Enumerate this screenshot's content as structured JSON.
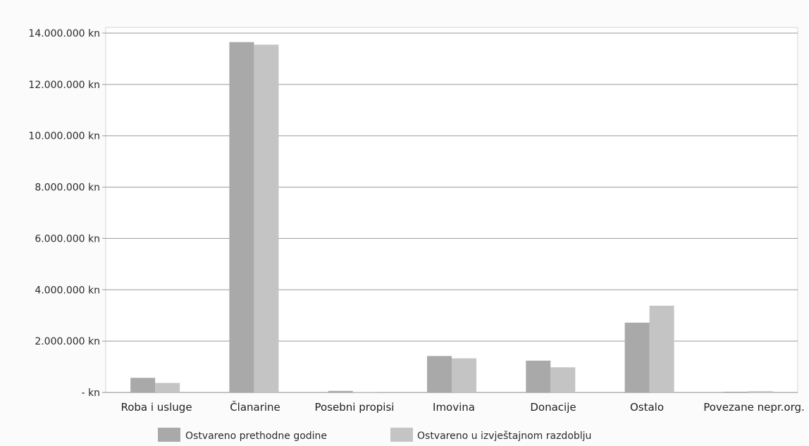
{
  "chart_data": {
    "type": "bar",
    "categories": [
      "Roba i usluge",
      "Članarine",
      "Posebni propisi",
      "Imovina",
      "Donacije",
      "Ostalo",
      "Povezane nepr.org."
    ],
    "series": [
      {
        "name": "Ostvareno prethodne godine",
        "color": "#a9a9a9",
        "values": [
          570000,
          13650000,
          60000,
          1420000,
          1240000,
          2720000,
          30000
        ]
      },
      {
        "name": "Ostvareno u izvještajnom razdoblju",
        "color": "#c4c4c4",
        "values": [
          370000,
          13550000,
          20000,
          1330000,
          980000,
          3380000,
          50000
        ]
      }
    ],
    "ylim": [
      0,
      14000000
    ],
    "yticks": [
      0,
      2000000,
      4000000,
      6000000,
      8000000,
      10000000,
      12000000,
      14000000
    ],
    "ytick_labels": [
      "- kn",
      "2.000.000 kn",
      "4.000.000 kn",
      "6.000.000 kn",
      "8.000.000 kn",
      "10.000.000 kn",
      "12.000.000 kn",
      "14.000.000 kn"
    ],
    "grid": true,
    "legend_position": "bottom",
    "title": "",
    "xlabel": "",
    "ylabel": ""
  }
}
